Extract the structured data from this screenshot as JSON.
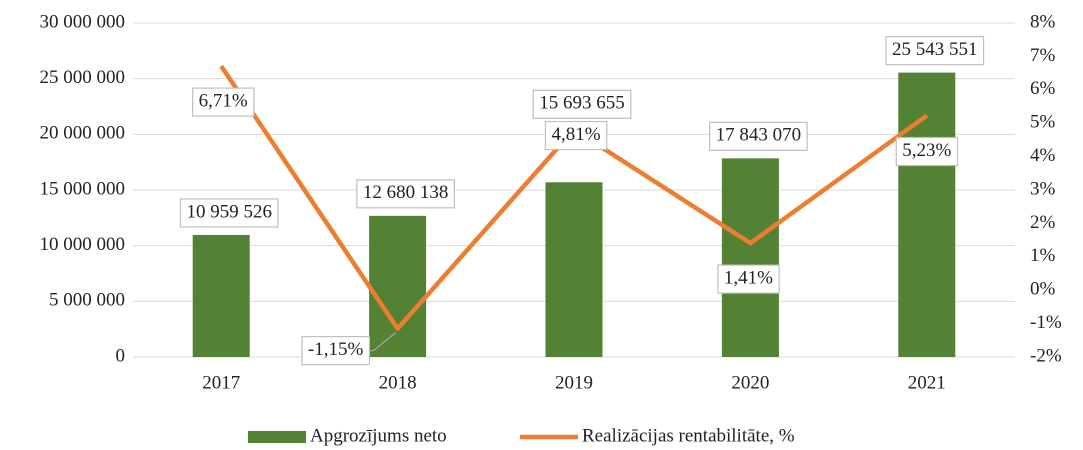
{
  "chart_data": {
    "type": "bar",
    "categories": [
      "2017",
      "2018",
      "2019",
      "2020",
      "2021"
    ],
    "series": [
      {
        "name": "Apgrozījums neto",
        "type": "bar",
        "color": "#548235",
        "values": [
          10959526,
          12680138,
          15693655,
          17843070,
          25543551
        ],
        "value_labels": [
          "10 959 526",
          "12 680 138",
          "15 693 655",
          "17 843 070",
          "25 543 551"
        ]
      },
      {
        "name": "Realizācijas rentabilitāte, %",
        "type": "line",
        "axis": "y2",
        "color": "#ed7d31",
        "values": [
          6.71,
          -1.15,
          4.81,
          1.41,
          5.23
        ],
        "value_labels": [
          "6,71%",
          "-1,15%",
          "4,81%",
          "1,41%",
          "5,23%"
        ]
      }
    ],
    "ylim": [
      0,
      30000000
    ],
    "yticks": [
      0,
      {
        "value": 5000000,
        "label": "5 000 000"
      },
      {
        "value": 10000000,
        "label": "10 000 000"
      },
      {
        "value": 15000000,
        "label": "15 000 000"
      },
      {
        "value": 20000000,
        "label": "20 000 000"
      },
      {
        "value": 25000000,
        "label": "25 000 000"
      },
      {
        "value": 30000000,
        "label": "30 000 000"
      }
    ],
    "y2lim": [
      -2,
      8
    ],
    "y2ticks": [
      {
        "value": -2,
        "label": "-2%"
      },
      {
        "value": -1,
        "label": "-1%"
      },
      {
        "value": 0,
        "label": "0%"
      },
      {
        "value": 1,
        "label": "1%"
      },
      {
        "value": 2,
        "label": "2%"
      },
      {
        "value": 3,
        "label": "3%"
      },
      {
        "value": 4,
        "label": "4%"
      },
      {
        "value": 5,
        "label": "5%"
      },
      {
        "value": 6,
        "label": "6%"
      },
      {
        "value": 7,
        "label": "7%"
      },
      {
        "value": 8,
        "label": "8%"
      }
    ],
    "grid": true,
    "legend": "bottom"
  }
}
